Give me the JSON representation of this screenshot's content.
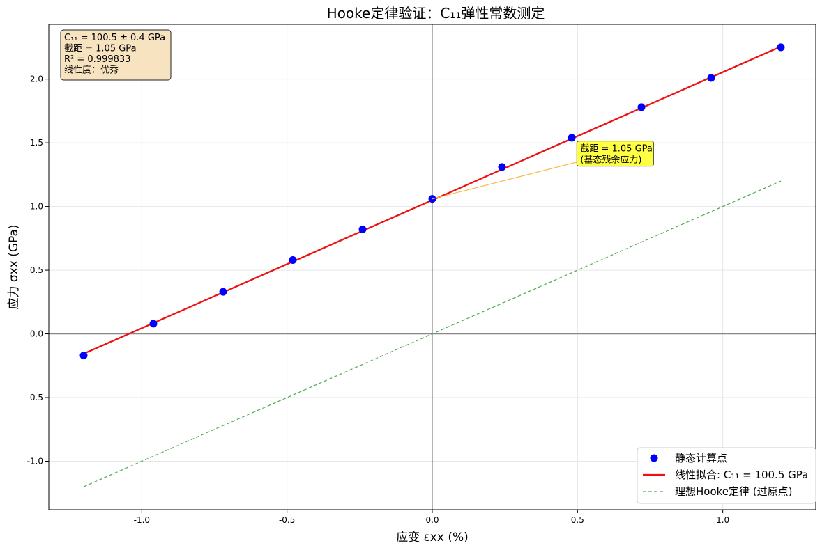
{
  "chart_data": {
    "type": "scatter",
    "title": "Hooke定律验证：C₁₁弹性常数测定",
    "xlabel": "应变 εxx (%)",
    "ylabel": "应力 σxx (GPa)",
    "xlim": [
      -1.32,
      1.32
    ],
    "ylim": [
      -1.38,
      2.43
    ],
    "xticks": [
      -1.0,
      -0.5,
      0.0,
      0.5,
      1.0
    ],
    "xtick_labels": [
      "-1.0",
      "-0.5",
      "0.0",
      "0.5",
      "1.0"
    ],
    "yticks": [
      -1.0,
      -0.5,
      0.0,
      0.5,
      1.0,
      1.5,
      2.0
    ],
    "ytick_labels": [
      "-1.0",
      "-0.5",
      "0.0",
      "0.5",
      "1.0",
      "1.5",
      "2.0"
    ],
    "grid": true,
    "legend_position": "bottom-right",
    "series": [
      {
        "name": "静态计算点",
        "kind": "scatter",
        "color": "#0000ff",
        "x": [
          -1.2,
          -0.96,
          -0.72,
          -0.48,
          -0.24,
          0.0,
          0.24,
          0.48,
          0.72,
          0.96,
          1.2
        ],
        "y": [
          -0.17,
          0.08,
          0.33,
          0.58,
          0.82,
          1.06,
          1.31,
          1.54,
          1.78,
          2.01,
          2.25
        ]
      },
      {
        "name": "线性拟合: C₁₁ = 100.5 GPa",
        "kind": "line",
        "color": "#ee1111",
        "style": "solid",
        "x": [
          -1.2,
          1.2
        ],
        "y": [
          -0.156,
          2.256
        ]
      },
      {
        "name": "理想Hooke定律 (过原点)",
        "kind": "line",
        "color": "#4daa4d",
        "style": "dashed",
        "x": [
          -1.2,
          1.2
        ],
        "y": [
          -1.2,
          1.2
        ]
      }
    ],
    "stats_box": {
      "lines": [
        "C₁₁ = 100.5 ± 0.4 GPa",
        "截距 = 1.05 GPa",
        "R² = 0.999833",
        "线性度：优秀"
      ],
      "position": "top-left",
      "background": "#f7e3c0"
    },
    "annotation": {
      "lines": [
        "截距 = 1.05 GPa",
        "(基态残余应力)"
      ],
      "point_x": 0.0,
      "point_y": 1.06,
      "text_x": 0.5,
      "text_y": 1.35,
      "background": "#ffff44",
      "arrow_color": "#f5b942"
    },
    "reference_lines": {
      "x": 0.0,
      "y": 0.0,
      "color": "#888888"
    }
  }
}
